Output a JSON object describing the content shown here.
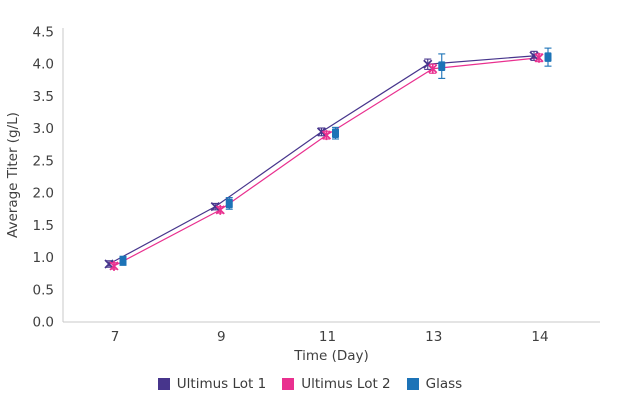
{
  "chart_data": {
    "type": "line",
    "title": "",
    "xlabel": "Time (Day)",
    "ylabel": "Average Titer (g/L)",
    "categories": [
      "7",
      "9",
      "11",
      "13",
      "14"
    ],
    "ytick_labels": [
      "0.0",
      "0.5",
      "1.0",
      "1.5",
      "2.0",
      "2.5",
      "3.0",
      "3.5",
      "4.0",
      "4.5"
    ],
    "ylim": [
      0,
      4.5
    ],
    "grid": false,
    "legend_position": "bottom",
    "axis_color": "#c9c9c9",
    "tick_text_color": "#3f3f3f",
    "series": [
      {
        "name": "Ultimus Lot 1",
        "color": "#47358C",
        "marker": "x",
        "has_line": true,
        "dx": -6,
        "values": [
          0.9,
          1.79,
          2.95,
          4.0,
          4.13
        ],
        "errors": [
          0.05,
          0.05,
          0.06,
          0.08,
          0.07
        ]
      },
      {
        "name": "Ultimus Lot 2",
        "color": "#E9308F",
        "marker": "star",
        "has_line": true,
        "dx": -1,
        "values": [
          0.87,
          1.74,
          2.9,
          3.93,
          4.1
        ],
        "errors": [
          0.05,
          0.05,
          0.06,
          0.07,
          0.06
        ]
      },
      {
        "name": "Glass",
        "color": "#1C73B7",
        "marker": "square",
        "has_line": false,
        "dx": 8,
        "values": [
          0.95,
          1.84,
          2.93,
          3.97,
          4.11
        ],
        "errors": [
          0.07,
          0.09,
          0.09,
          0.19,
          0.14
        ]
      }
    ]
  }
}
